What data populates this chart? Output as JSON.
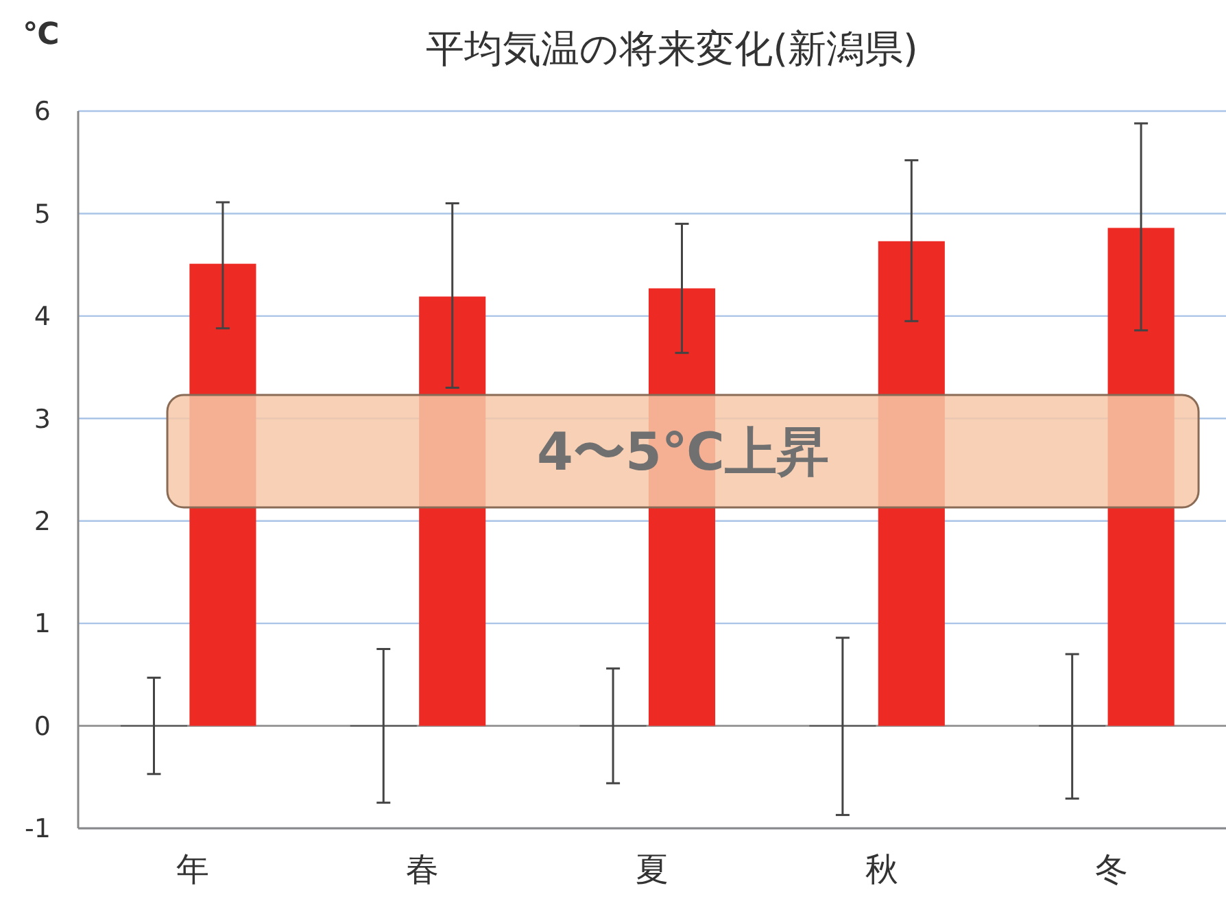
{
  "chart_data": {
    "type": "bar",
    "title": "平均気温の将来変化(新潟県)",
    "ylabel": "℃",
    "categories": [
      "年",
      "春",
      "夏",
      "秋",
      "冬"
    ],
    "series": [
      {
        "color": "#595959",
        "values": [
          0,
          0,
          0,
          0,
          0
        ],
        "errors": [
          [
            -0.47,
            0.47
          ],
          [
            -0.75,
            0.75
          ],
          [
            -0.56,
            0.56
          ],
          [
            -0.87,
            0.86
          ],
          [
            -0.71,
            0.7
          ]
        ]
      },
      {
        "color": "#ee2a24",
        "values": [
          4.51,
          4.19,
          4.27,
          4.73,
          4.86
        ],
        "errors": [
          [
            3.88,
            5.11
          ],
          [
            3.3,
            5.1
          ],
          [
            3.64,
            4.9
          ],
          [
            3.95,
            5.52
          ],
          [
            3.86,
            5.88
          ]
        ]
      }
    ],
    "ylim": [
      -1,
      6
    ],
    "yticks": [
      -1,
      0,
      1,
      2,
      3,
      4,
      5,
      6
    ],
    "grid": "y",
    "legend": false,
    "annotations": [
      "4〜5℃上昇"
    ]
  }
}
